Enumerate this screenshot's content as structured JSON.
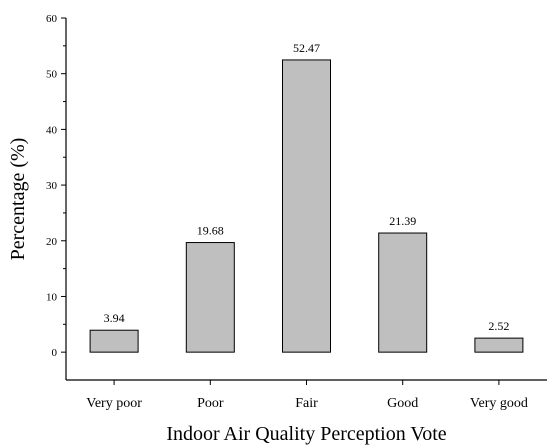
{
  "chart_data": {
    "type": "bar",
    "categories": [
      "Very poor",
      "Poor",
      "Fair",
      "Good",
      "Very good"
    ],
    "values": [
      3.94,
      19.68,
      52.47,
      21.39,
      2.52
    ],
    "data_labels": [
      "3.94",
      "19.68",
      "52.47",
      "21.39",
      "2.52"
    ],
    "xlabel": "Indoor Air Quality Perception Vote",
    "ylabel": "Percentage (%)",
    "ylim": [
      -5,
      60
    ],
    "yticks": [
      0,
      10,
      20,
      30,
      40,
      50,
      60
    ],
    "ytick_labels": [
      "0",
      "10",
      "20",
      "30",
      "40",
      "50",
      "60"
    ],
    "grid": false,
    "legend": "none",
    "bar_color": "#bfbfbf",
    "edge_color": "#000000"
  }
}
